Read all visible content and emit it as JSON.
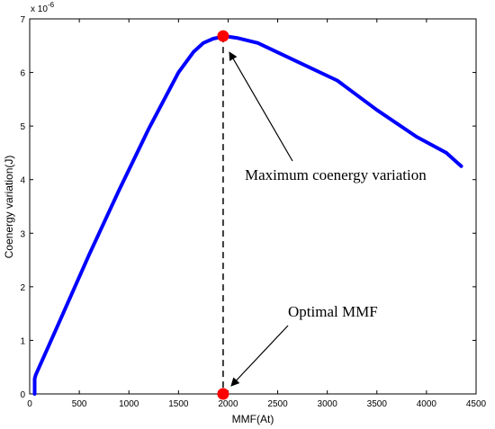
{
  "chart_data": {
    "type": "line",
    "xlabel": "MMF(At)",
    "ylabel": "Coenergy variation(J)",
    "y_multiplier": "x 10",
    "y_exponent": "-6",
    "xlim": [
      0,
      4500
    ],
    "ylim": [
      0,
      7
    ],
    "x_ticks": [
      "0",
      "500",
      "1000",
      "1500",
      "2000",
      "2500",
      "3000",
      "3500",
      "4000",
      "4500"
    ],
    "y_ticks": [
      "0",
      "1",
      "2",
      "3",
      "4",
      "5",
      "6",
      "7"
    ],
    "grid": false,
    "series": [
      {
        "color": "#0000ff",
        "x": [
          50,
          50,
          60,
          300,
          600,
          900,
          1200,
          1500,
          1650,
          1750,
          1850,
          1950,
          2000,
          2100,
          2300,
          2700,
          3100,
          3500,
          3900,
          4200,
          4350
        ],
        "y": [
          0.0,
          0.28,
          0.35,
          1.35,
          2.6,
          3.8,
          4.95,
          6.0,
          6.38,
          6.55,
          6.63,
          6.67,
          6.67,
          6.64,
          6.55,
          6.2,
          5.85,
          5.3,
          4.8,
          4.5,
          4.25
        ]
      }
    ],
    "highlight_points": [
      {
        "x": 1950,
        "y": 6.68,
        "color": "#ff0000"
      },
      {
        "x": 1950,
        "y": 0.0,
        "color": "#ff0000"
      }
    ],
    "annotations": [
      {
        "text": "Maximum coenergy variation",
        "points_to": {
          "x": 1950,
          "y": 6.68
        }
      },
      {
        "text": "Optimal MMF",
        "points_to": {
          "x": 1950,
          "y": 0.0
        }
      }
    ]
  }
}
